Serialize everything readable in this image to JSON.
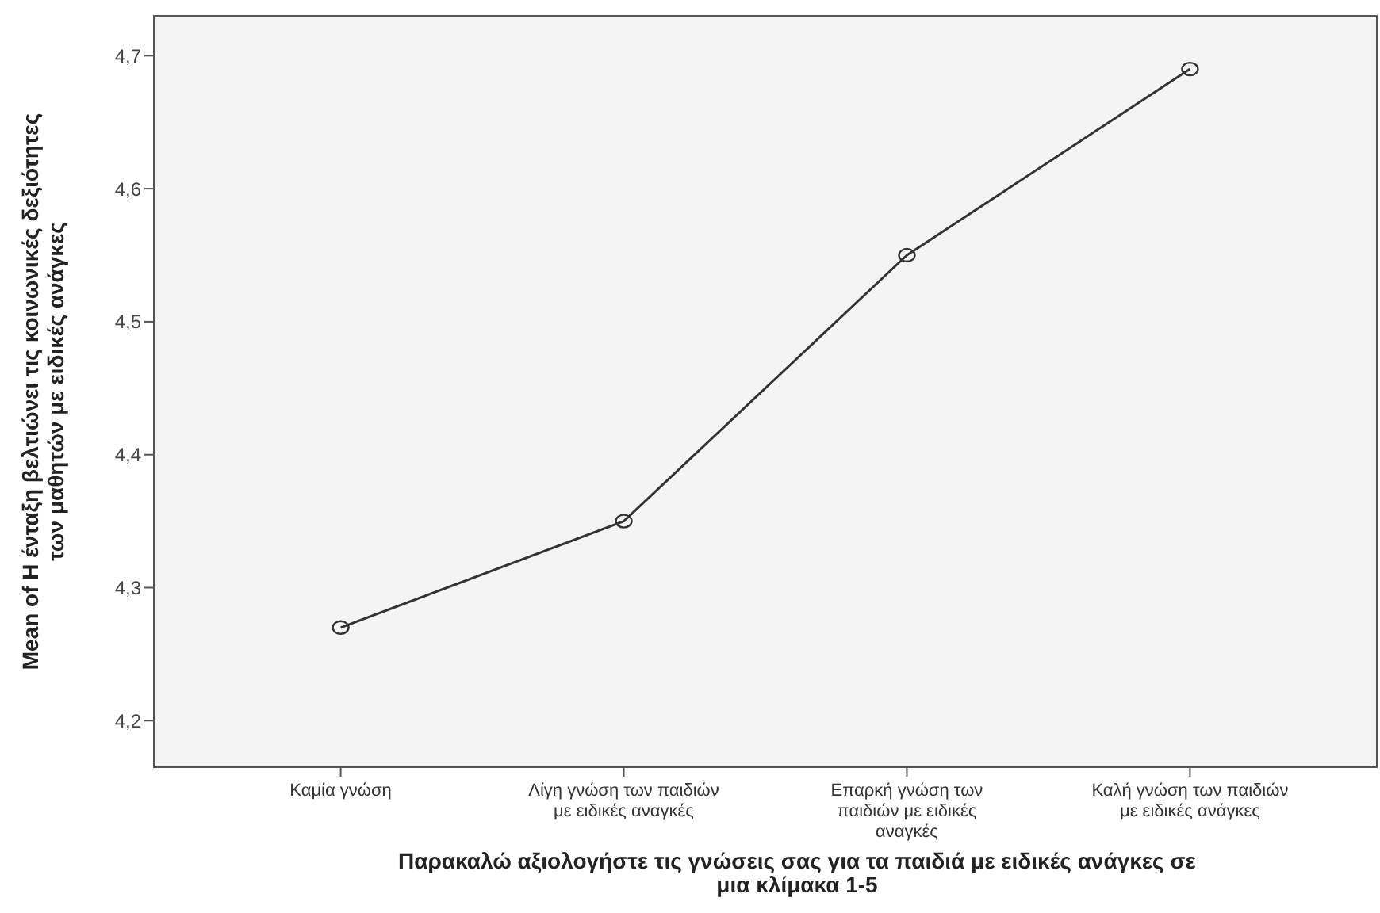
{
  "chart_data": {
    "type": "line",
    "xlabel": "Παρακαλώ αξιολογήστε τις γνώσεις σας για τα παιδιά με ειδικές ανάγκες σε μια κλίμακα 1-5",
    "ylabel": "Mean of Η ένταξη βελτιώνει τις κοινωνικές δεξιότητες των μαθητών με ειδικές ανάγκες",
    "categories": [
      "Καμία γνώση",
      "Λίγη γνώση των παιδιών με ειδικές αναγκές",
      "Επαρκή γνώση των παιδιών με ειδικές αναγκές",
      "Καλή γνώση των παιδιών με ειδικές ανάγκες"
    ],
    "series": [
      {
        "color": "#333333",
        "values": [
          4.27,
          4.35,
          4.55,
          4.69
        ]
      }
    ],
    "ylim": [
      4.165,
      4.73
    ],
    "yticks": [
      {
        "value": 4.2,
        "label": "4,2"
      },
      {
        "value": 4.3,
        "label": "4,3"
      },
      {
        "value": 4.4,
        "label": "4,4"
      },
      {
        "value": 4.5,
        "label": "4,5"
      },
      {
        "value": 4.6,
        "label": "4,6"
      },
      {
        "value": 4.7,
        "label": "4,7"
      }
    ],
    "marker": "circle",
    "line_style": "solid",
    "grid": false
  }
}
